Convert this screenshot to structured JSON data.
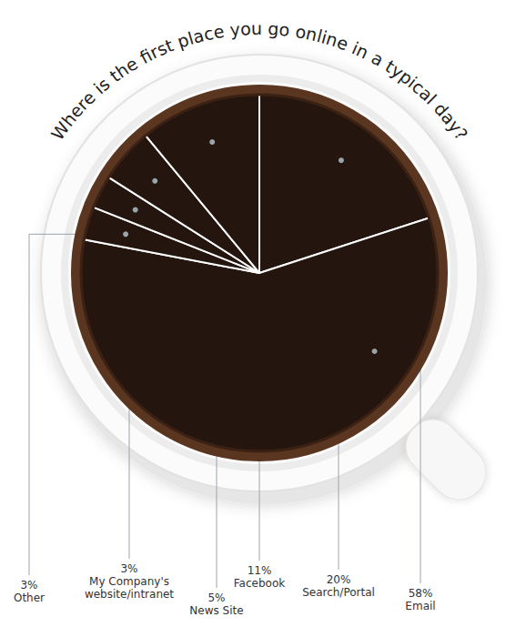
{
  "chart_data": {
    "type": "pie",
    "title": "Where is the first place you go online in a typical day?",
    "categories": [
      "Search/Portal",
      "Email",
      "Other",
      "My Company's website/intranet",
      "News Site",
      "Facebook"
    ],
    "values": [
      20,
      58,
      3,
      3,
      5,
      11
    ],
    "value_labels": [
      "20%",
      "58%",
      "3%",
      "3%",
      "5%",
      "11%"
    ],
    "color": "#24150e",
    "data_labels": true
  }
}
